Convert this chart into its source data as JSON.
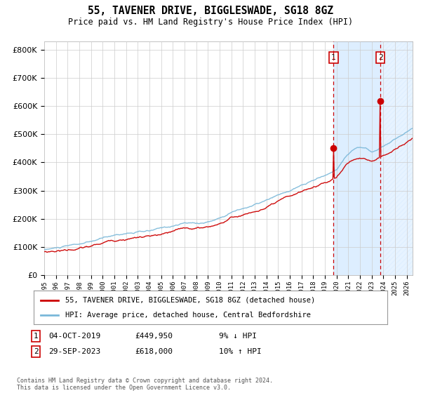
{
  "title": "55, TAVENER DRIVE, BIGGLESWADE, SG18 8GZ",
  "subtitle": "Price paid vs. HM Land Registry's House Price Index (HPI)",
  "legend_line1": "55, TAVENER DRIVE, BIGGLESWADE, SG18 8GZ (detached house)",
  "legend_line2": "HPI: Average price, detached house, Central Bedfordshire",
  "annotation1_label": "1",
  "annotation1_date": "04-OCT-2019",
  "annotation1_price": "£449,950",
  "annotation1_hpi": "9% ↓ HPI",
  "annotation1_value": 449950,
  "annotation1_year": 2019.75,
  "annotation2_label": "2",
  "annotation2_date": "29-SEP-2023",
  "annotation2_price": "£618,000",
  "annotation2_hpi": "10% ↑ HPI",
  "annotation2_value": 618000,
  "annotation2_year": 2023.75,
  "hpi_color": "#7ab8d9",
  "price_color": "#cc0000",
  "highlight_color": "#ddeeff",
  "grid_color": "#cccccc",
  "background_color": "#ffffff",
  "ylim": [
    0,
    830000
  ],
  "xlim_start": 1995,
  "xlim_end": 2026.5,
  "footnote": "Contains HM Land Registry data © Crown copyright and database right 2024.\nThis data is licensed under the Open Government Licence v3.0."
}
